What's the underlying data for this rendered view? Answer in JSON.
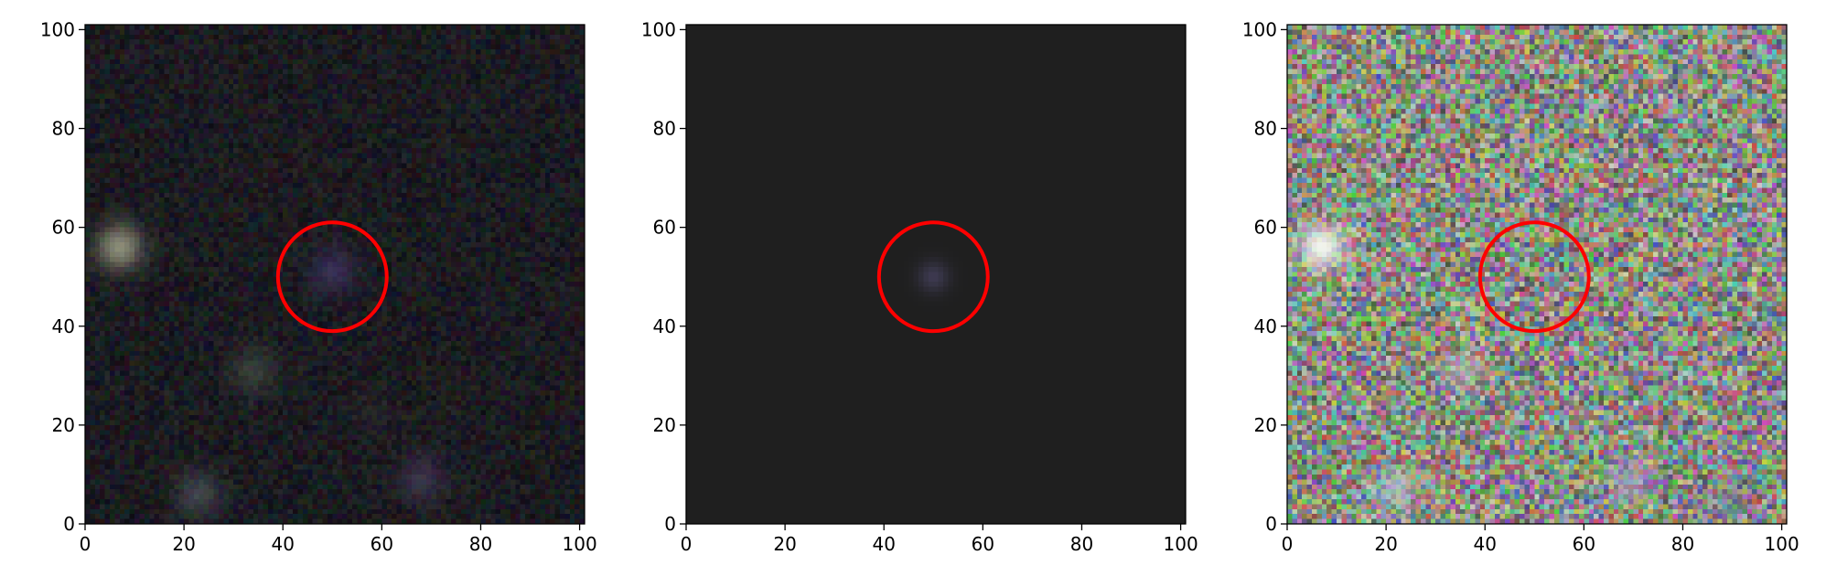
{
  "figure": {
    "panels": [
      {
        "id": "observed-image",
        "background": "#1b1b20",
        "noise_strength": 0.55,
        "noise_tint": "dark",
        "circle_center": [
          50,
          50
        ],
        "circle_radius": 11,
        "circle_color": "#ff0000",
        "sources": [
          {
            "x": 7,
            "y": 56,
            "color": "#a8aa90",
            "strength": 0.8
          },
          {
            "x": 50,
            "y": 51,
            "color": "#4a3a7a",
            "strength": 0.6
          },
          {
            "x": 34,
            "y": 31,
            "color": "#5a6a5a",
            "strength": 0.45
          },
          {
            "x": 23,
            "y": 6,
            "color": "#6a7a80",
            "strength": 0.45
          },
          {
            "x": 68,
            "y": 9,
            "color": "#5a4a70",
            "strength": 0.5
          },
          {
            "x": 58,
            "y": 22,
            "color": "#3a3040",
            "strength": 0.3
          }
        ]
      },
      {
        "id": "model-image",
        "background": "#1f1f1f",
        "noise_strength": 0,
        "noise_tint": "none",
        "circle_center": [
          50,
          50
        ],
        "circle_radius": 11,
        "circle_color": "#ff0000",
        "sources": [
          {
            "x": 50,
            "y": 50,
            "color": "#4a4566",
            "strength": 0.7
          }
        ]
      },
      {
        "id": "residual-image",
        "background": "#8a8c82",
        "noise_strength": 1.0,
        "noise_tint": "bright",
        "circle_center": [
          50,
          50
        ],
        "circle_radius": 11,
        "circle_color": "#ff0000",
        "sources": [
          {
            "x": 7,
            "y": 56,
            "color": "#f2f4ee",
            "strength": 1.0
          },
          {
            "x": 35,
            "y": 31,
            "color": "#c8d0c8",
            "strength": 0.5
          },
          {
            "x": 22,
            "y": 7,
            "color": "#b8c8d8",
            "strength": 0.6
          },
          {
            "x": 69,
            "y": 9,
            "color": "#a8a0c8",
            "strength": 0.6
          },
          {
            "x": 88,
            "y": 4,
            "color": "#7070a0",
            "strength": 0.4
          }
        ]
      }
    ],
    "axes": {
      "xlim": [
        0,
        101
      ],
      "ylim": [
        0,
        101
      ],
      "xticks": [
        "0",
        "20",
        "40",
        "60",
        "80",
        "100"
      ],
      "yticks": [
        "0",
        "20",
        "40",
        "60",
        "80",
        "100"
      ],
      "tick_values": [
        0,
        20,
        40,
        60,
        80,
        100
      ]
    }
  }
}
